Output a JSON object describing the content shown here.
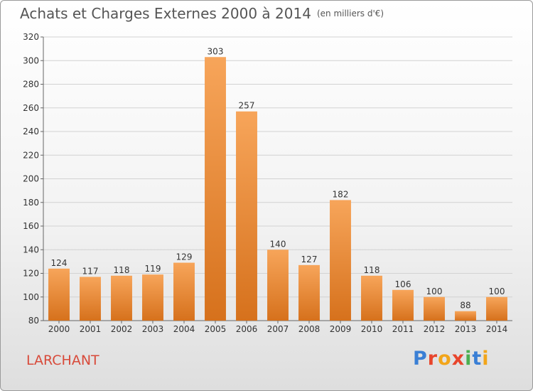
{
  "title": "Achats et Charges Externes 2000 à 2014",
  "unit": "(en milliers d'€)",
  "place": "LARCHANT",
  "logo": "Proxiti",
  "colors": {
    "bar_top": "#f7a55a",
    "bar_bottom": "#d6711c",
    "title": "#555555",
    "place": "#d84a3a"
  },
  "chart_data": {
    "type": "bar",
    "title": "Achats et Charges Externes 2000 à 2014",
    "subtitle": "(en milliers d'€)",
    "categories": [
      "2000",
      "2001",
      "2002",
      "2003",
      "2004",
      "2005",
      "2006",
      "2007",
      "2008",
      "2009",
      "2010",
      "2011",
      "2012",
      "2013",
      "2014"
    ],
    "values": [
      124,
      117,
      118,
      119,
      129,
      303,
      257,
      140,
      127,
      182,
      118,
      106,
      100,
      88,
      100
    ],
    "ylim": [
      80,
      320
    ],
    "yticks": [
      80,
      100,
      120,
      140,
      160,
      180,
      200,
      220,
      240,
      260,
      280,
      300,
      320
    ],
    "grid": true,
    "legend": "none"
  }
}
